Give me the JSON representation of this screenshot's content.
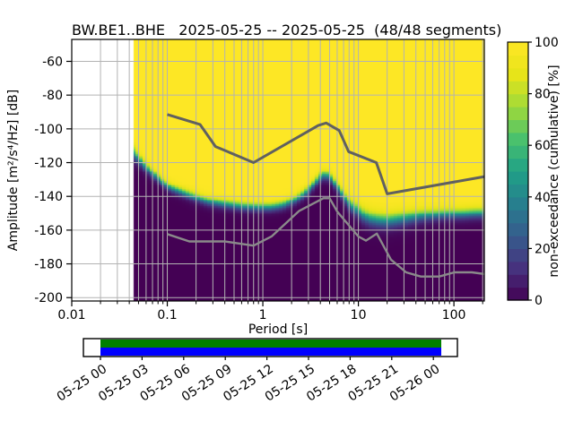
{
  "window": {
    "title": "BW.BE1..BHE   2025-05-25 -- 2025-05-25  (48/48 segments)"
  },
  "chart_data": {
    "type": "heatmap",
    "title": "BW.BE1..BHE   2025-05-25 -- 2025-05-25  (48/48 segments)",
    "xlabel": "Period [s]",
    "ylabel": "Amplitude [m²/s⁴/Hz] [dB]",
    "x_scale": "log",
    "xlim": [
      0.01,
      208
    ],
    "ylim": [
      -202,
      -47
    ],
    "x_ticks": [
      0.01,
      0.1,
      1,
      10,
      100
    ],
    "x_tick_labels": [
      "0.01",
      "0.1",
      "1",
      "10",
      "100"
    ],
    "y_ticks": [
      -60,
      -80,
      -100,
      -120,
      -140,
      -160,
      -180,
      -200
    ],
    "y_tick_labels": [
      "-60",
      "-80",
      "-100",
      "-120",
      "-140",
      "-160",
      "-180",
      "-200"
    ],
    "grid": true,
    "grid_color": "#b3b3b3",
    "colorbar": {
      "label": "non-exceedance (cumulative) [%]",
      "ticks": [
        0,
        20,
        40,
        60,
        80,
        100
      ],
      "tick_labels": [
        "0",
        "20",
        "40",
        "60",
        "80",
        "100"
      ],
      "n_blocks": 20,
      "colormap": "viridis",
      "range": [
        0,
        100
      ]
    },
    "viridis_stops": [
      [
        0.0,
        "#440154"
      ],
      [
        0.125,
        "#46327e"
      ],
      [
        0.25,
        "#365c8d"
      ],
      [
        0.375,
        "#277f8e"
      ],
      [
        0.5,
        "#1fa187"
      ],
      [
        0.625,
        "#4ac16d"
      ],
      [
        0.75,
        "#a0da39"
      ],
      [
        0.875,
        "#e7e419"
      ],
      [
        1.0,
        "#fde725"
      ]
    ],
    "heatmap": {
      "description": "non-exceedance cumulative percent vs (period, amplitude); 100%=yellow above noise distribution, 0%=purple below; boundary_db50 is the 50% level, halfwidth_db is distance to the 10%/90% levels",
      "data_start_period_s": 0.0435,
      "period_step_octaves": 0.125,
      "db_bin_width": 1,
      "periods_s": [
        0.044,
        0.05,
        0.06,
        0.072,
        0.086,
        0.105,
        0.13,
        0.18,
        0.26,
        0.38,
        0.6,
        0.9,
        1.2,
        1.6,
        2.1,
        2.7,
        3.3,
        3.9,
        4.5,
        5.2,
        6.0,
        7.0,
        8.2,
        9.5,
        11.0,
        13.0,
        16.0,
        20.0,
        26.0,
        34.0,
        45.0,
        60.0,
        85.0,
        120.0,
        170.0,
        208.0
      ],
      "boundary_db50": [
        -114,
        -118,
        -123,
        -127,
        -131,
        -134.5,
        -136.5,
        -139.5,
        -142.5,
        -144,
        -145.5,
        -146,
        -146,
        -144.8,
        -142,
        -138,
        -133,
        -128.5,
        -126.5,
        -129.5,
        -134.5,
        -140,
        -145,
        -147.5,
        -150.5,
        -152.5,
        -153.5,
        -154,
        -153,
        -152,
        -151,
        -150.5,
        -150,
        -150,
        -149.5,
        -149.5
      ],
      "halfwidth_db": [
        5,
        4,
        3.5,
        3.2,
        3,
        3,
        3,
        3.2,
        3.2,
        3.2,
        3.2,
        3.2,
        3.2,
        3.2,
        3.2,
        3.4,
        3.5,
        3.5,
        3.5,
        3.5,
        3.8,
        4.2,
        4.6,
        5,
        5.4,
        5.5,
        5.5,
        5.5,
        5.4,
        5,
        4.6,
        4.2,
        4,
        4,
        4,
        4
      ]
    },
    "noise_models": {
      "nhnm_name": "Peterson New High Noise Model",
      "nhnm_color": "#606060",
      "nhnm": [
        [
          0.1,
          -91.5
        ],
        [
          0.22,
          -97.4
        ],
        [
          0.32,
          -110.5
        ],
        [
          0.8,
          -120.0
        ],
        [
          3.8,
          -98.0
        ],
        [
          4.6,
          -96.5
        ],
        [
          6.3,
          -101.0
        ],
        [
          7.9,
          -113.5
        ],
        [
          15.4,
          -120.0
        ],
        [
          20.0,
          -138.5
        ],
        [
          354.8,
          -126.0
        ]
      ],
      "nlnm_name": "Peterson New Low Noise Model",
      "nlnm_color": "#8a8a8a",
      "nlnm": [
        [
          0.1,
          -162.36
        ],
        [
          0.17,
          -166.7
        ],
        [
          0.4,
          -166.7
        ],
        [
          0.8,
          -169.2
        ],
        [
          1.24,
          -163.7
        ],
        [
          2.4,
          -148.6
        ],
        [
          4.3,
          -141.1
        ],
        [
          5.0,
          -141.1
        ],
        [
          6.0,
          -149.0
        ],
        [
          10.0,
          -163.8
        ],
        [
          12.0,
          -166.2
        ],
        [
          15.6,
          -162.1
        ],
        [
          21.9,
          -177.5
        ],
        [
          31.6,
          -185.0
        ],
        [
          45.0,
          -187.5
        ],
        [
          70.0,
          -187.5
        ],
        [
          101.0,
          -185.0
        ],
        [
          154.0,
          -185.0
        ],
        [
          328.0,
          -187.5
        ]
      ]
    },
    "timeline": {
      "tick_labels": [
        "05-25 00",
        "05-25 03",
        "05-25 06",
        "05-25 09",
        "05-25 12",
        "05-25 15",
        "05-25 18",
        "05-25 21",
        "05-26 00"
      ],
      "coverage_color_top": "#008000",
      "coverage_color_bottom": "#0000ff",
      "frame_color": "#000000"
    }
  }
}
